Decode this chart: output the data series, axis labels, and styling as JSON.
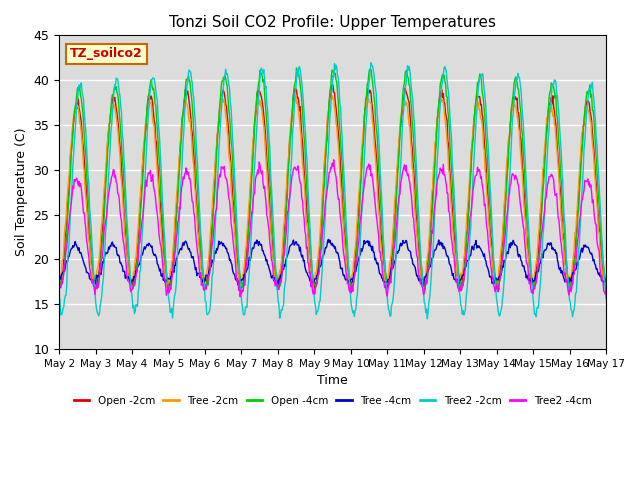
{
  "title": "Tonzi Soil CO2 Profile: Upper Temperatures",
  "xlabel": "Time",
  "ylabel": "Soil Temperature (C)",
  "ylim": [
    10,
    45
  ],
  "yticks": [
    10,
    15,
    20,
    25,
    30,
    35,
    40,
    45
  ],
  "bg_color": "#dcdcdc",
  "series": [
    {
      "label": "Open -2cm",
      "color": "#dd0000"
    },
    {
      "label": "Tree -2cm",
      "color": "#ff9900"
    },
    {
      "label": "Open -4cm",
      "color": "#00cc00"
    },
    {
      "label": "Tree -4cm",
      "color": "#0000cc"
    },
    {
      "label": "Tree2 -2cm",
      "color": "#00cccc"
    },
    {
      "label": "Tree2 -4cm",
      "color": "#ff00ff"
    }
  ],
  "xtick_labels": [
    "May 2",
    "May 3",
    "May 4",
    "May 5",
    "May 6",
    "May 7",
    "May 8",
    "May 9",
    "May 10",
    "May 11",
    "May 12",
    "May 13",
    "May 14",
    "May 15",
    "May 16",
    "May 17"
  ],
  "xtick_positions": [
    0,
    1,
    2,
    3,
    4,
    5,
    6,
    7,
    8,
    9,
    10,
    11,
    12,
    13,
    14,
    15
  ],
  "annotation_text": "TZ_soilco2",
  "n_points": 720
}
